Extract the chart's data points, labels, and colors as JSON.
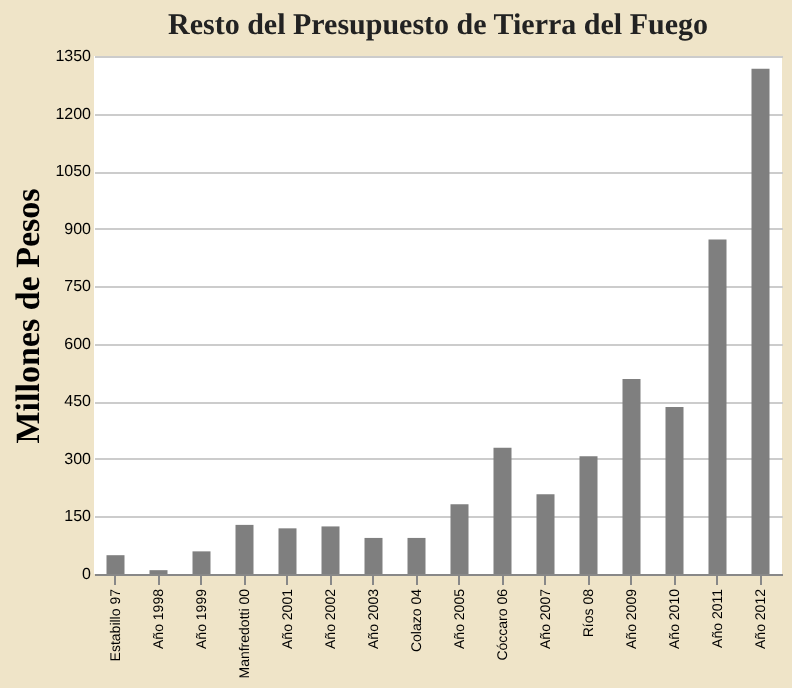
{
  "chart_data": {
    "type": "bar",
    "title": "Resto del Presupuesto de Tierra del Fuego",
    "ylabel": "Millones de Pesos",
    "categories": [
      "Estabillo 97",
      "Año 1998",
      "Año 1999",
      "Manfredotti 00",
      "Año 2001",
      "Año 2002",
      "Año 2003",
      "Colazo 04",
      "Año 2005",
      "Cóccaro 06",
      "Año 2007",
      "Ríos 08",
      "Año 2009",
      "Año 2010",
      "Año 2011",
      "Año 2012"
    ],
    "values": [
      49,
      10,
      59,
      128,
      119,
      124,
      94,
      94,
      182,
      329,
      208,
      307,
      508,
      435,
      872,
      1317
    ],
    "color": "#7f7f7f",
    "ylim": [
      0,
      1350
    ],
    "yticks": [
      0,
      150,
      300,
      450,
      600,
      750,
      900,
      1050,
      1200,
      1350
    ],
    "grid": "y"
  }
}
